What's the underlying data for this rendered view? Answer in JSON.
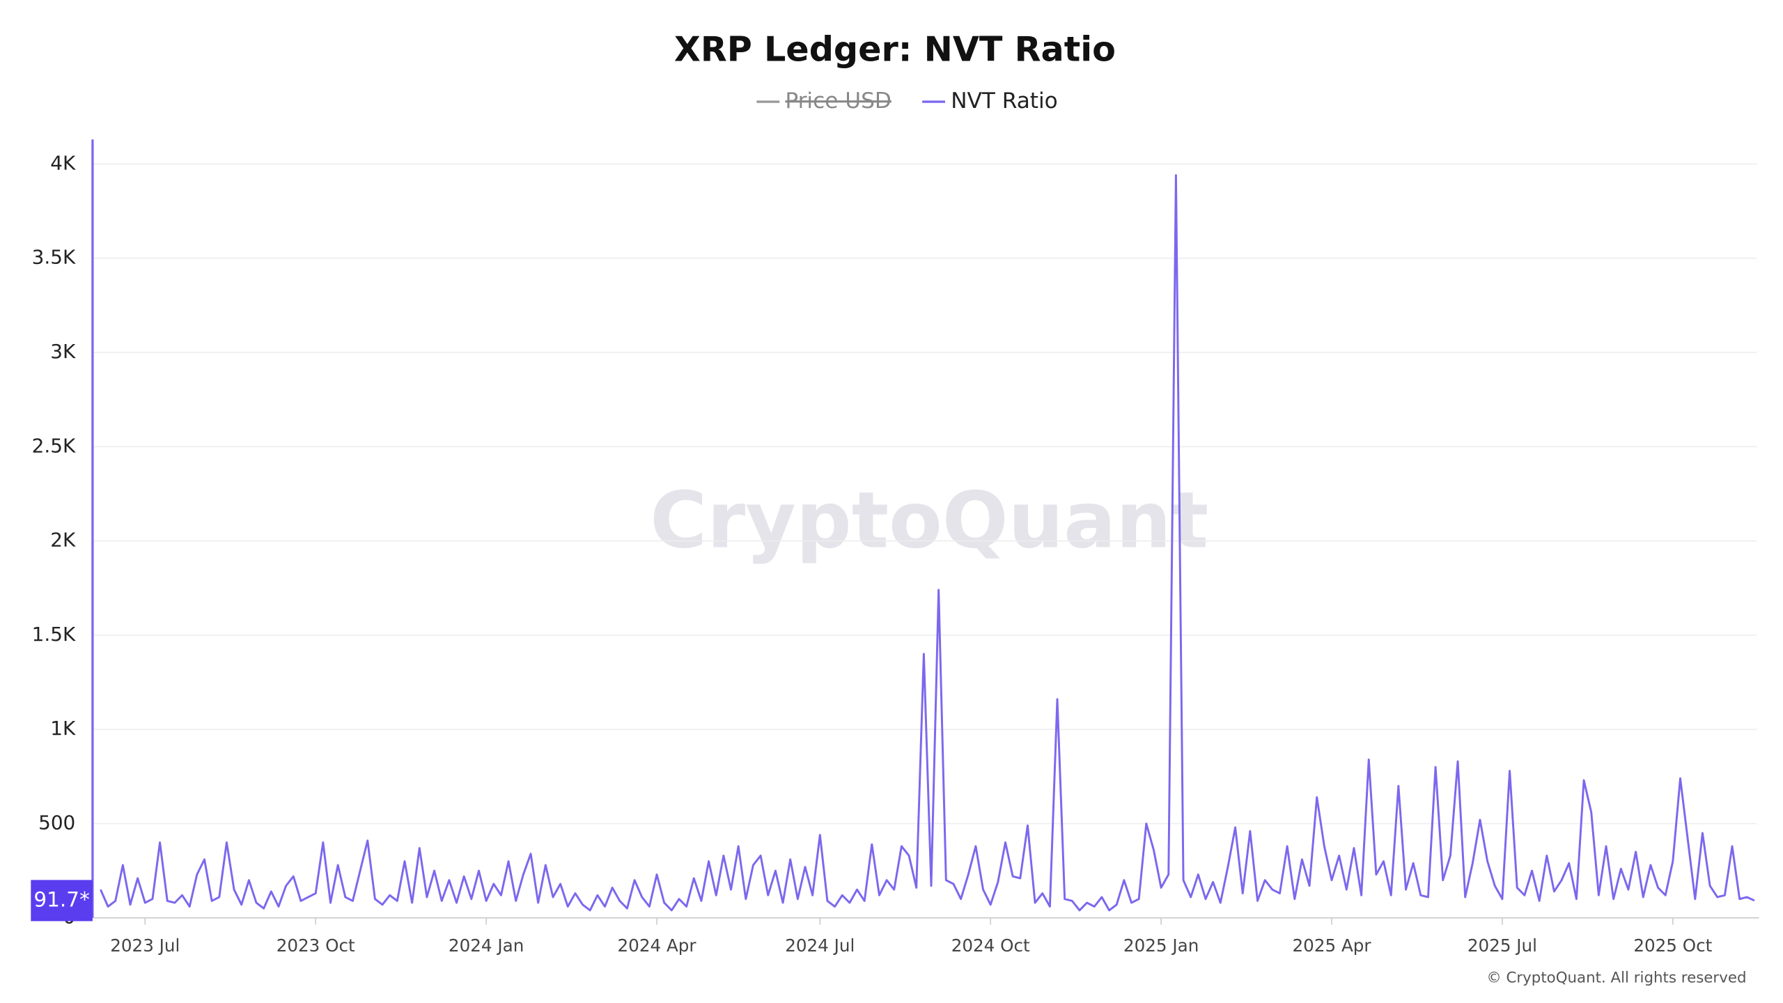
{
  "chart_data": {
    "type": "line",
    "title": "XRP Ledger: NVT Ratio",
    "watermark": "CryptoQuant",
    "copyright": "© CryptoQuant. All rights reserved",
    "last_value_label": "91.7*",
    "grid": true,
    "ylim": [
      0,
      4130
    ],
    "yticks": [
      0,
      500,
      {
        "value": 1000,
        "label": "1K"
      },
      {
        "value": 1500,
        "label": "1.5K"
      },
      {
        "value": 2000,
        "label": "2K"
      },
      {
        "value": 2500,
        "label": "2.5K"
      },
      {
        "value": 3000,
        "label": "3K"
      },
      {
        "value": 3500,
        "label": "3.5K"
      },
      {
        "value": 4000,
        "label": "4K"
      }
    ],
    "categories": [
      null,
      null,
      null,
      null,
      null,
      null,
      "2023 Jul",
      null,
      null,
      null,
      null,
      null,
      null,
      null,
      null,
      null,
      null,
      null,
      null,
      null,
      null,
      null,
      null,
      null,
      null,
      null,
      null,
      null,
      null,
      "2023 Oct",
      null,
      null,
      null,
      null,
      null,
      null,
      null,
      null,
      null,
      null,
      null,
      null,
      null,
      null,
      null,
      null,
      null,
      null,
      null,
      null,
      null,
      null,
      "2024 Jan",
      null,
      null,
      null,
      null,
      null,
      null,
      null,
      null,
      null,
      null,
      null,
      null,
      null,
      null,
      null,
      null,
      null,
      null,
      null,
      null,
      null,
      null,
      "2024 Apr",
      null,
      null,
      null,
      null,
      null,
      null,
      null,
      null,
      null,
      null,
      null,
      null,
      null,
      null,
      null,
      null,
      null,
      null,
      null,
      null,
      null,
      "2024 Jul",
      null,
      null,
      null,
      null,
      null,
      null,
      null,
      null,
      null,
      null,
      null,
      null,
      null,
      null,
      null,
      null,
      null,
      null,
      null,
      null,
      null,
      null,
      "2024 Oct",
      null,
      null,
      null,
      null,
      null,
      null,
      null,
      null,
      null,
      null,
      null,
      null,
      null,
      null,
      null,
      null,
      null,
      null,
      null,
      null,
      null,
      null,
      "2025 Jan",
      null,
      null,
      null,
      null,
      null,
      null,
      null,
      null,
      null,
      null,
      null,
      null,
      null,
      null,
      null,
      null,
      null,
      null,
      null,
      null,
      null,
      null,
      "2025 Apr",
      null,
      null,
      null,
      null,
      null,
      null,
      null,
      null,
      null,
      null,
      null,
      null,
      null,
      null,
      null,
      null,
      null,
      null,
      null,
      null,
      null,
      null,
      "2025 Jul",
      null,
      null,
      null,
      null,
      null,
      null,
      null,
      null,
      null,
      null,
      null,
      null,
      null,
      null,
      null,
      null,
      null,
      null,
      null,
      null,
      null,
      null,
      "2025 Oct",
      null,
      null,
      null,
      null,
      null,
      null,
      null,
      null,
      null,
      null,
      null
    ],
    "series": [
      {
        "name": "Price USD",
        "color": "#999999",
        "hidden": true
      },
      {
        "name": "NVT Ratio",
        "color": "#7b68ee",
        "values": [
          150,
          60,
          90,
          280,
          70,
          210,
          80,
          100,
          400,
          90,
          80,
          120,
          60,
          230,
          310,
          90,
          110,
          400,
          150,
          70,
          200,
          80,
          50,
          140,
          60,
          170,
          220,
          90,
          110,
          130,
          400,
          80,
          280,
          110,
          90,
          250,
          410,
          100,
          70,
          120,
          90,
          300,
          80,
          370,
          110,
          250,
          90,
          200,
          80,
          220,
          100,
          250,
          90,
          180,
          120,
          300,
          90,
          230,
          340,
          80,
          280,
          110,
          180,
          60,
          130,
          70,
          40,
          120,
          60,
          160,
          90,
          50,
          200,
          110,
          60,
          230,
          80,
          40,
          100,
          60,
          210,
          90,
          300,
          120,
          330,
          150,
          380,
          100,
          280,
          330,
          120,
          250,
          80,
          310,
          100,
          270,
          120,
          440,
          90,
          60,
          120,
          80,
          150,
          90,
          390,
          120,
          200,
          150,
          380,
          330,
          160,
          1400,
          170,
          1740,
          200,
          180,
          100,
          230,
          380,
          150,
          70,
          190,
          400,
          220,
          210,
          490,
          80,
          130,
          60,
          1160,
          100,
          90,
          40,
          80,
          60,
          110,
          40,
          70,
          200,
          80,
          100,
          500,
          360,
          160,
          230,
          3940,
          200,
          110,
          230,
          100,
          190,
          80,
          270,
          480,
          130,
          460,
          90,
          200,
          150,
          130,
          380,
          100,
          310,
          170,
          640,
          380,
          200,
          330,
          150,
          370,
          120,
          840,
          230,
          300,
          120,
          700,
          150,
          290,
          120,
          110,
          800,
          200,
          330,
          830,
          110,
          290,
          520,
          300,
          170,
          100,
          780,
          160,
          120,
          250,
          90,
          330,
          140,
          200,
          290,
          100,
          730,
          560,
          120,
          380,
          100,
          260,
          150,
          350,
          110,
          280,
          160,
          120,
          300,
          740,
          420,
          100,
          450,
          170,
          110,
          120,
          380,
          100,
          110,
          91.7
        ]
      }
    ]
  }
}
